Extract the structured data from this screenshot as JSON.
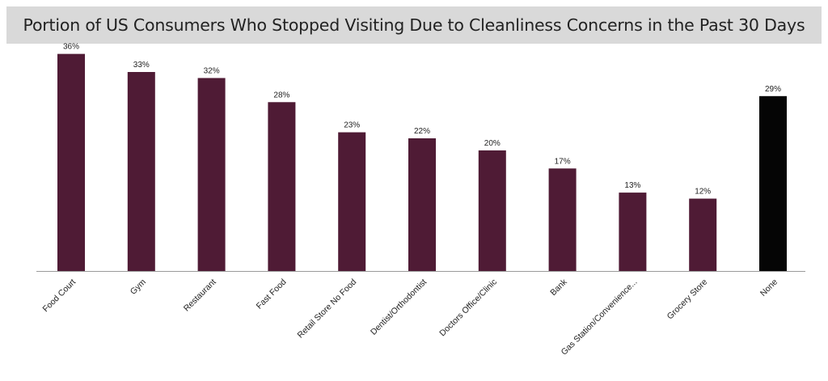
{
  "chart_data": {
    "type": "bar",
    "title": "Portion of US Consumers Who Stopped Visiting Due to Cleanliness Concerns in the Past 30  Days",
    "categories": [
      "Food Court",
      "Gym",
      "Restaurant",
      "Fast Food",
      "Retail Store No Food",
      "Dentist/Orthodontist",
      "Doctors Office/Clinic",
      "Bank",
      "Gas Station/Convenience...",
      "Grocery Store",
      "None"
    ],
    "values": [
      36,
      33,
      32,
      28,
      23,
      22,
      20,
      17,
      13,
      12,
      29
    ],
    "data_labels": [
      "36%",
      "33%",
      "32%",
      "28%",
      "23%",
      "22%",
      "20%",
      "17%",
      "13%",
      "12%",
      "29%"
    ],
    "unit": "%",
    "ylim": [
      0,
      38.5
    ],
    "grid": false,
    "legend": "none",
    "colors": {
      "bar": "#4f1b35",
      "highlight_bar": "#050505",
      "highlight_category": "None",
      "axis": "#9a9a9a",
      "title_background": "#d9d9d9"
    }
  }
}
